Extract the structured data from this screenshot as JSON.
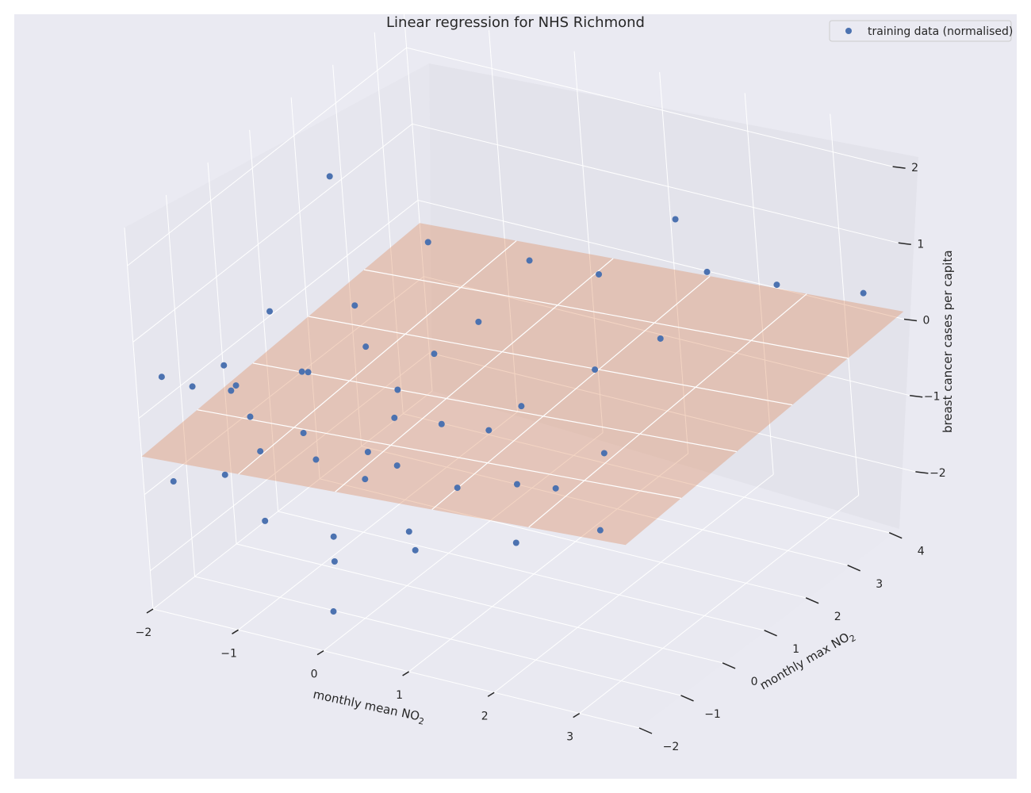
{
  "chart_data": {
    "type": "scatter",
    "title": "Linear regression for NHS Richmond",
    "xlabel": "monthly mean NO",
    "xlabel_subscript": "2",
    "ylabel": "monthly max NO",
    "ylabel_subscript": "2",
    "zlabel": "breast cancer cases per capita",
    "xlim": [
      -2,
      3.7
    ],
    "ylim": [
      -2,
      4.7
    ],
    "zlim": [
      -2.5,
      2.5
    ],
    "x_ticks": [
      -2,
      -1,
      0,
      1,
      2,
      3
    ],
    "y_ticks": [
      -2,
      -1,
      0,
      1,
      2,
      3,
      4
    ],
    "z_ticks": [
      -2,
      -1,
      0,
      1,
      2
    ],
    "x_tick_labels": [
      "−2",
      "−1",
      "0",
      "1",
      "2",
      "3"
    ],
    "y_tick_labels": [
      "−2",
      "−1",
      "0",
      "1",
      "2",
      "3",
      "4"
    ],
    "z_tick_labels": [
      "−2",
      "−1",
      "0",
      "1",
      "2"
    ],
    "grid": true,
    "legend": {
      "position": "top-right",
      "entries": [
        "training data (normalised)"
      ]
    },
    "colors": {
      "background": "#eaeaf2",
      "points": "#4c72b0",
      "plane": "#dd8452",
      "grid": "#ffffff",
      "text": "#262626"
    },
    "plane": {
      "z_intercept": -0.3,
      "slope_x": 0.07,
      "slope_y": 0.03
    },
    "series": [
      {
        "name": "training data (normalised)",
        "points": [
          [
            -1.9,
            -1.6,
            0.4
          ],
          [
            -1.7,
            -1.3,
            0.2
          ],
          [
            -1.4,
            -1.0,
            0.1
          ],
          [
            -1.2,
            -1.5,
            0.7
          ],
          [
            -1.6,
            -0.5,
            -0.1
          ],
          [
            -1.3,
            -0.8,
            -0.3
          ],
          [
            -1.0,
            -1.2,
            -0.5
          ],
          [
            -0.8,
            -0.5,
            0.3
          ],
          [
            -1.5,
            0.2,
            0.6
          ],
          [
            -1.1,
            0.0,
            -0.8
          ],
          [
            -0.9,
            -1.4,
            -1.3
          ],
          [
            -1.8,
            -1.7,
            -0.9
          ],
          [
            -0.5,
            -0.9,
            -0.6
          ],
          [
            -0.3,
            -0.2,
            -1.1
          ],
          [
            0.0,
            -1.6,
            -1.5
          ],
          [
            -0.2,
            0.5,
            -0.2
          ],
          [
            0.2,
            -0.4,
            -0.7
          ],
          [
            0.4,
            0.3,
            -0.4
          ],
          [
            0.6,
            -1.0,
            -1.2
          ],
          [
            -0.7,
            0.8,
            0.1
          ],
          [
            -0.1,
            1.2,
            0.0
          ],
          [
            0.3,
            1.5,
            0.4
          ],
          [
            0.8,
            0.6,
            -0.5
          ],
          [
            1.0,
            1.0,
            -0.3
          ],
          [
            1.3,
            0.2,
            -0.9
          ],
          [
            1.5,
            -0.3,
            -1.4
          ],
          [
            1.7,
            1.4,
            0.2
          ],
          [
            2.0,
            0.9,
            -0.6
          ],
          [
            2.3,
            1.8,
            0.6
          ],
          [
            2.6,
            2.4,
            1.3
          ],
          [
            3.0,
            3.2,
            0.9
          ],
          [
            3.5,
            4.2,
            0.5
          ],
          [
            0.1,
            -1.9,
            -2.0
          ],
          [
            -1.4,
            1.6,
            1.8
          ],
          [
            0.7,
            2.0,
            1.1
          ],
          [
            1.2,
            2.6,
            0.8
          ],
          [
            -0.6,
            2.2,
            0.9
          ],
          [
            1.9,
            3.1,
            1.5
          ],
          [
            0.5,
            -0.7,
            -1.6
          ],
          [
            -0.4,
            0.1,
            -0.9
          ],
          [
            -1.2,
            0.4,
            -0.2
          ],
          [
            -0.9,
            1.0,
            0.5
          ],
          [
            0.9,
            -0.4,
            -0.8
          ],
          [
            1.6,
            0.5,
            -1.0
          ],
          [
            2.2,
            0.3,
            -1.3
          ],
          [
            -1.6,
            -0.9,
            -1.1
          ],
          [
            -0.2,
            -1.2,
            -1.4
          ],
          [
            0.0,
            0.0,
            -0.3
          ]
        ]
      }
    ]
  }
}
